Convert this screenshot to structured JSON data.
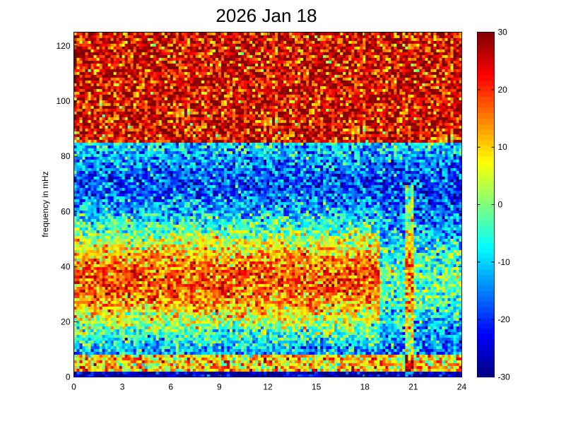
{
  "chart_data": {
    "type": "heatmap",
    "title": "2026 Jan 18",
    "xlabel": "",
    "ylabel": "frequency in mHz",
    "xlim": [
      0,
      24
    ],
    "ylim": [
      0,
      125
    ],
    "x_ticks": [
      "0",
      "3",
      "6",
      "9",
      "12",
      "15",
      "18",
      "21",
      "24"
    ],
    "y_ticks": [
      "0",
      "20",
      "40",
      "60",
      "80",
      "100",
      "120"
    ],
    "colorbar": {
      "clim": [
        -30,
        30
      ],
      "ticks": [
        "-30",
        "-20",
        "-10",
        "0",
        "10",
        "20",
        "30"
      ],
      "colormap": "jet"
    },
    "grid": false,
    "description_values": {
      "low_freq_band_mHz": [
        0,
        8
      ],
      "low_freq_band_level": 10,
      "broadband_event_hour": 20.8,
      "broadband_event_upper_mHz": 70,
      "high_freq_background_level": 28
    }
  },
  "colors": {
    "jet_low": "#00008f",
    "jet_high": "#800000",
    "axis": "#000000"
  }
}
